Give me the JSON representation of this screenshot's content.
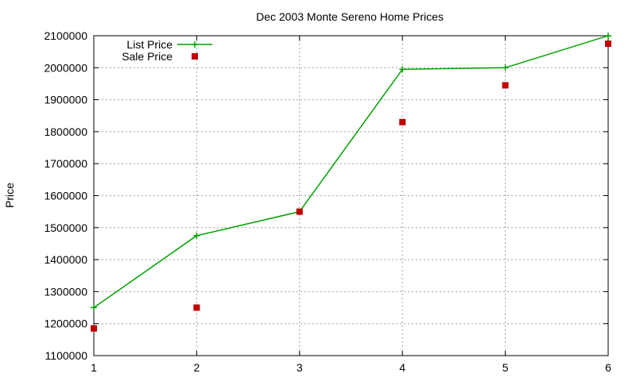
{
  "chart_data": {
    "type": "line",
    "title": "Dec 2003 Monte Sereno Home Prices",
    "xlabel": "",
    "ylabel": "Price",
    "x": [
      1,
      2,
      3,
      4,
      5,
      6
    ],
    "xlim": [
      1,
      6
    ],
    "ylim": [
      1100000,
      2100000
    ],
    "xticks": [
      "1",
      "2",
      "3",
      "4",
      "5",
      "6"
    ],
    "yticks": [
      "1100000",
      "1200000",
      "1300000",
      "1400000",
      "1500000",
      "1600000",
      "1700000",
      "1800000",
      "1900000",
      "2000000",
      "2100000"
    ],
    "grid": true,
    "legend_position": "top-left",
    "series": [
      {
        "name": "List Price",
        "style": "line with plus markers",
        "color": "#00a000",
        "values": [
          1250000,
          1475000,
          1550000,
          1995000,
          2000000,
          2100000
        ]
      },
      {
        "name": "Sale Price",
        "style": "square markers",
        "color": "#c00000",
        "values": [
          1185000,
          1250000,
          1550000,
          1830000,
          1945000,
          2075000
        ]
      }
    ]
  }
}
